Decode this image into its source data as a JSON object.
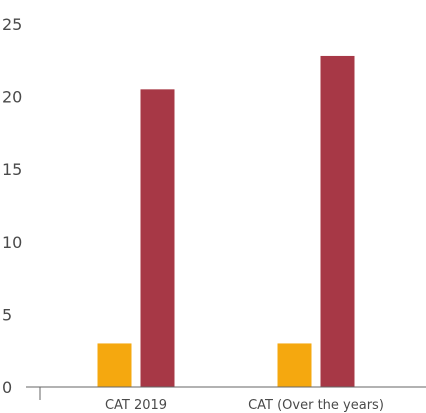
{
  "chart_data": {
    "type": "bar",
    "categories": [
      "CAT 2019",
      "CAT (Over the years)"
    ],
    "series": [
      {
        "values": [
          3.0,
          3.0
        ],
        "color": "#f5a80f"
      },
      {
        "values": [
          20.5,
          22.8
        ],
        "color": "#a73846"
      }
    ],
    "title": "",
    "xlabel": "",
    "ylabel": "",
    "ylim": [
      0,
      25
    ],
    "yticks": [
      0,
      5,
      10,
      15,
      20,
      25
    ],
    "grid": false,
    "legend": "none"
  }
}
